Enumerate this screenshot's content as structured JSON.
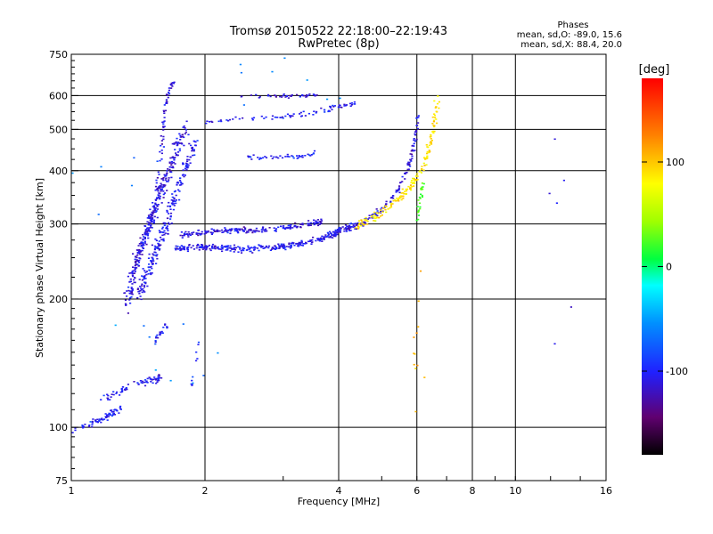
{
  "chart_data": {
    "type": "scatter",
    "title": "Tromsø 20150522 22:18:00–22:19:43",
    "subtitle": "RwPretec (8p)",
    "xlabel": "Frequency [MHz]",
    "ylabel": "Stationary phase Virtual Height [km]",
    "x_scale": "log",
    "y_scale": "log",
    "xlim": [
      1,
      16
    ],
    "ylim": [
      75,
      750
    ],
    "x_ticks": [
      1,
      2,
      4,
      6,
      8,
      10,
      16
    ],
    "x_tick_labels": [
      "1",
      "2",
      "4",
      "6",
      "8",
      "10",
      "16"
    ],
    "y_ticks": [
      75,
      100,
      200,
      300,
      400,
      500,
      600,
      750
    ],
    "y_tick_labels": [
      "75",
      "100",
      "200",
      "300",
      "400",
      "500",
      "600",
      "750"
    ],
    "grid": true,
    "phases": {
      "title": "Phases",
      "line_o": "mean, sd,O: -89.0, 15.6",
      "line_x": "mean, sd,X:  88.4, 20.0"
    },
    "colorbar": {
      "label": "[deg]",
      "range": [
        -180,
        180
      ],
      "ticks": [
        100,
        0,
        -100
      ],
      "tick_labels": [
        "100",
        "0",
        "-100"
      ]
    },
    "traces": [
      {
        "kind": "band",
        "x": [
          1.0,
          1.1,
          1.2,
          1.3
        ],
        "y": [
          98,
          102,
          106,
          112
        ],
        "spread": 0.05,
        "count": 70,
        "phase": -100
      },
      {
        "kind": "band",
        "x": [
          1.15,
          1.25,
          1.35,
          1.45,
          1.55,
          1.6
        ],
        "y": [
          115,
          120,
          125,
          128,
          130,
          132
        ],
        "spread": 0.06,
        "count": 70,
        "phase": -105
      },
      {
        "kind": "band",
        "x": [
          1.5,
          1.55,
          1.6,
          1.65
        ],
        "y": [
          150,
          160,
          170,
          175
        ],
        "spread": 0.05,
        "count": 20,
        "phase": -100
      },
      {
        "kind": "band",
        "x": [
          1.33,
          1.36,
          1.4,
          1.45,
          1.5,
          1.55,
          1.6,
          1.7,
          1.8
        ],
        "y": [
          190,
          215,
          245,
          275,
          300,
          330,
          370,
          430,
          500
        ],
        "spread": 0.09,
        "count": 340,
        "phase": -110
      },
      {
        "kind": "band",
        "x": [
          1.42,
          1.48,
          1.55,
          1.62,
          1.7,
          1.8,
          1.9
        ],
        "y": [
          200,
          230,
          260,
          290,
          340,
          400,
          470
        ],
        "spread": 0.09,
        "count": 220,
        "phase": -105
      },
      {
        "kind": "band",
        "x": [
          1.55,
          1.6,
          1.62,
          1.65,
          1.7
        ],
        "y": [
          350,
          450,
          540,
          610,
          650
        ],
        "spread": 0.04,
        "count": 60,
        "phase": -110
      },
      {
        "kind": "band",
        "x": [
          1.7,
          1.9,
          2.1,
          2.4,
          2.8,
          3.2,
          3.6,
          4.0,
          4.3
        ],
        "y": [
          262,
          265,
          265,
          262,
          264,
          268,
          275,
          288,
          300
        ],
        "spread": 0.045,
        "count": 330,
        "phase": -105
      },
      {
        "kind": "band",
        "x": [
          1.75,
          2.0,
          2.3,
          2.7,
          3.2,
          3.7
        ],
        "y": [
          282,
          288,
          290,
          290,
          296,
          305
        ],
        "spread": 0.04,
        "count": 200,
        "phase": -110
      },
      {
        "kind": "band",
        "x": [
          4.2,
          4.6,
          5.0,
          5.4,
          5.7,
          5.9,
          6.05
        ],
        "y": [
          292,
          305,
          325,
          355,
          395,
          455,
          545
        ],
        "spread": 0.04,
        "count": 130,
        "phase": -110
      },
      {
        "kind": "band",
        "x": [
          4.3,
          4.8,
          5.3,
          5.8,
          6.2,
          6.5,
          6.7
        ],
        "y": [
          295,
          312,
          335,
          365,
          410,
          480,
          590
        ],
        "spread": 0.05,
        "count": 170,
        "phase": 90
      },
      {
        "kind": "band",
        "x": [
          6.0,
          6.1,
          6.2
        ],
        "y": [
          300,
          340,
          380
        ],
        "spread": 0.04,
        "count": 25,
        "phase": 20
      },
      {
        "kind": "band",
        "x": [
          2.5,
          2.8,
          3.2,
          3.6
        ],
        "y": [
          430,
          430,
          432,
          440
        ],
        "spread": 0.03,
        "count": 45,
        "phase": -100
      },
      {
        "kind": "band",
        "x": [
          2.0,
          2.4,
          2.8,
          3.2,
          3.6,
          4.0,
          4.4
        ],
        "y": [
          520,
          530,
          535,
          540,
          550,
          565,
          580
        ],
        "spread": 0.04,
        "count": 80,
        "phase": -105
      },
      {
        "kind": "band",
        "x": [
          2.4,
          2.8,
          3.2,
          3.6
        ],
        "y": [
          600,
          598,
          600,
          605
        ],
        "spread": 0.025,
        "count": 40,
        "phase": -110
      },
      {
        "kind": "band",
        "x": [
          1.85,
          1.9,
          1.95
        ],
        "y": [
          120,
          140,
          160
        ],
        "spread": 0.06,
        "count": 10,
        "phase": -95
      },
      {
        "kind": "band",
        "x": [
          6.0,
          6.0,
          6.0
        ],
        "y": [
          100,
          160,
          240
        ],
        "spread": 0.15,
        "count": 12,
        "phase": 110
      },
      {
        "kind": "band",
        "x": [
          12.5,
          12.5,
          12.5
        ],
        "y": [
          120,
          330,
          650
        ],
        "spread": 0.3,
        "count": 6,
        "phase": -100
      },
      {
        "kind": "scatter",
        "x": [
          1.05,
          1.8,
          2.9
        ],
        "y": [
          410,
          160,
          640
        ],
        "spread": 1.2,
        "count": 30,
        "phase": -60
      }
    ]
  }
}
